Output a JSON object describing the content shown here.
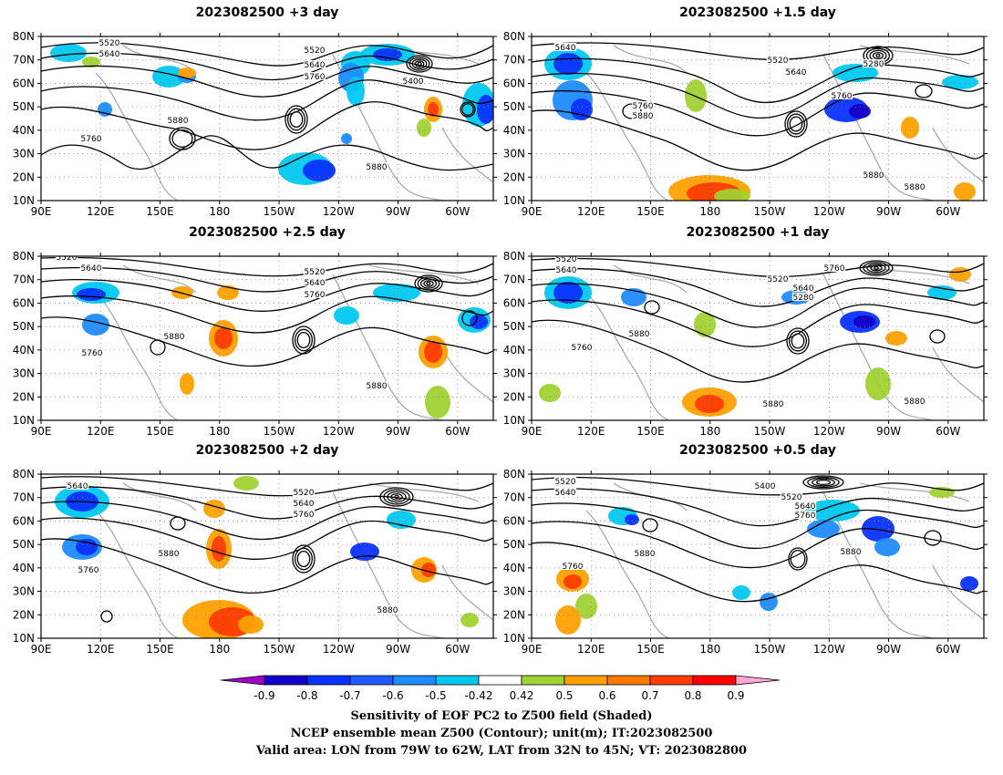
{
  "panels": [
    {
      "title": "2023082500  +3 day",
      "contour_labels": [
        "5520",
        "5640",
        "5520",
        "5640",
        "5760",
        "5400",
        "5880",
        "5760",
        "5880"
      ],
      "field": "z3"
    },
    {
      "title": "2023082500  +1.5 day",
      "contour_labels": [
        "5640",
        "5520",
        "5640",
        "5280",
        "5760",
        "5760",
        "5880",
        "5880",
        "5880"
      ],
      "field": "z15"
    },
    {
      "title": "2023082500  +2.5 day",
      "contour_labels": [
        "5520",
        "5640",
        "5520",
        "5640",
        "5760",
        "5880",
        "5760",
        "5880"
      ],
      "field": "z25"
    },
    {
      "title": "2023082500  +1 day",
      "contour_labels": [
        "5520",
        "5640",
        "5520",
        "5640",
        "5280",
        "5760",
        "5880",
        "5760",
        "5880",
        "5880"
      ],
      "field": "z1"
    },
    {
      "title": "2023082500  +2 day",
      "contour_labels": [
        "5640",
        "5520",
        "5640",
        "5760",
        "5880",
        "5760",
        "5880"
      ],
      "field": "z2"
    },
    {
      "title": "2023082500  +0.5 day",
      "contour_labels": [
        "5520",
        "5640",
        "5400",
        "5520",
        "5640",
        "5760",
        "5880",
        "5880",
        "5760"
      ],
      "field": "z05"
    }
  ],
  "lat_ticks": [
    "80N",
    "70N",
    "60N",
    "50N",
    "40N",
    "30N",
    "20N",
    "10N"
  ],
  "lon_ticks": [
    "90E",
    "120E",
    "150E",
    "180",
    "150W",
    "120W",
    "90W",
    "60W"
  ],
  "colorbar": {
    "labels": [
      "-0.9",
      "-0.8",
      "-0.7",
      "-0.6",
      "-0.5",
      "-0.42",
      "0.42",
      "0.5",
      "0.6",
      "0.7",
      "0.8",
      "0.9"
    ],
    "colors": [
      "#a000c8",
      "#1400c8",
      "#0a32ff",
      "#1e5aff",
      "#1e8cff",
      "#00c8f0",
      "#ffffff",
      "#a0d232",
      "#ffa000",
      "#ff7800",
      "#ff3c00",
      "#ff0000",
      "#ffaad2"
    ]
  },
  "caption": {
    "line1": "Sensitivity of EOF PC2 to Z500 field (Shaded)",
    "line2": "NCEP ensemble mean Z500 (Contour); unit(m); IT:2023082500",
    "line3": "Valid area: LON from 79W to 62W, LAT from 32N to 45N; VT: 2023082800"
  }
}
